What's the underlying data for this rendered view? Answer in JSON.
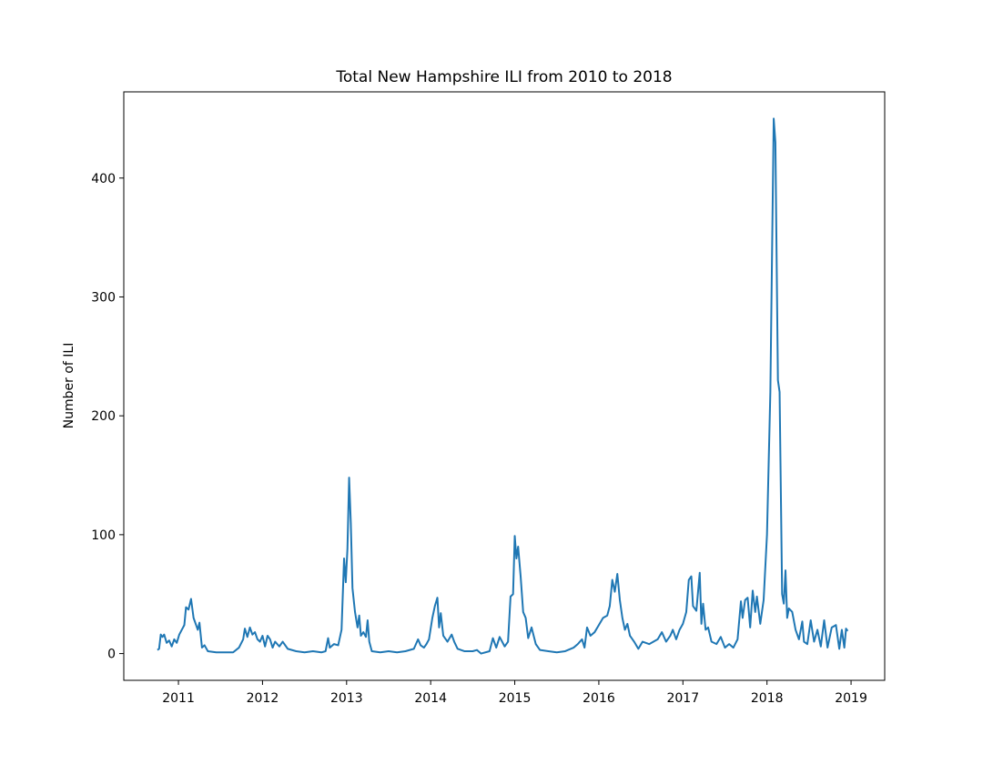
{
  "chart_data": {
    "type": "line",
    "title": "Total New Hampshire ILI from 2010 to 2018",
    "ylabel": "Number of ILI",
    "x": [
      2010.75,
      2010.77,
      2010.79,
      2010.81,
      2010.83,
      2010.86,
      2010.89,
      2010.92,
      2010.95,
      2010.98,
      2011.01,
      2011.04,
      2011.07,
      2011.09,
      2011.12,
      2011.15,
      2011.18,
      2011.21,
      2011.23,
      2011.25,
      2011.28,
      2011.31,
      2011.35,
      2011.45,
      2011.55,
      2011.65,
      2011.72,
      2011.77,
      2011.79,
      2011.82,
      2011.85,
      2011.88,
      2011.91,
      2011.94,
      2011.97,
      2012.0,
      2012.03,
      2012.06,
      2012.09,
      2012.12,
      2012.15,
      2012.2,
      2012.24,
      2012.3,
      2012.4,
      2012.5,
      2012.6,
      2012.7,
      2012.75,
      2012.78,
      2012.8,
      2012.85,
      2012.9,
      2012.94,
      2012.97,
      2012.99,
      2013.01,
      2013.03,
      2013.05,
      2013.07,
      2013.1,
      2013.13,
      2013.15,
      2013.17,
      2013.2,
      2013.23,
      2013.25,
      2013.27,
      2013.3,
      2013.4,
      2013.5,
      2013.6,
      2013.7,
      2013.8,
      2013.85,
      2013.88,
      2013.92,
      2013.95,
      2013.98,
      2014.02,
      2014.05,
      2014.08,
      2014.1,
      2014.12,
      2014.15,
      2014.2,
      2014.25,
      2014.28,
      2014.32,
      2014.4,
      2014.5,
      2014.55,
      2014.6,
      2014.7,
      2014.74,
      2014.78,
      2014.82,
      2014.85,
      2014.88,
      2014.92,
      2014.95,
      2014.98,
      2015.0,
      2015.02,
      2015.04,
      2015.07,
      2015.1,
      2015.13,
      2015.16,
      2015.2,
      2015.25,
      2015.3,
      2015.4,
      2015.5,
      2015.6,
      2015.7,
      2015.75,
      2015.8,
      2015.83,
      2015.86,
      2015.9,
      2015.95,
      2016.0,
      2016.05,
      2016.1,
      2016.13,
      2016.16,
      2016.19,
      2016.22,
      2016.25,
      2016.28,
      2016.31,
      2016.34,
      2016.37,
      2016.42,
      2016.47,
      2016.52,
      2016.6,
      2016.65,
      2016.7,
      2016.75,
      2016.8,
      2016.85,
      2016.88,
      2016.92,
      2016.96,
      2017.0,
      2017.04,
      2017.07,
      2017.1,
      2017.12,
      2017.16,
      2017.2,
      2017.22,
      2017.24,
      2017.27,
      2017.3,
      2017.34,
      2017.4,
      2017.45,
      2017.5,
      2017.55,
      2017.6,
      2017.65,
      2017.69,
      2017.71,
      2017.74,
      2017.77,
      2017.8,
      2017.83,
      2017.86,
      2017.88,
      2017.92,
      2017.96,
      2018.0,
      2018.04,
      2018.08,
      2018.1,
      2018.13,
      2018.15,
      2018.18,
      2018.2,
      2018.22,
      2018.24,
      2018.26,
      2018.3,
      2018.34,
      2018.38,
      2018.42,
      2018.44,
      2018.48,
      2018.52,
      2018.56,
      2018.6,
      2018.64,
      2018.68,
      2018.72,
      2018.77,
      2018.82,
      2018.86,
      2018.89,
      2018.92,
      2018.94,
      2018.96
    ],
    "series": [
      {
        "color": "#1f77b4",
        "values": [
          3,
          4,
          16,
          14,
          16,
          9,
          11,
          6,
          12,
          9,
          16,
          20,
          24,
          39,
          37,
          46,
          30,
          24,
          20,
          26,
          5,
          7,
          2,
          1,
          1,
          1,
          5,
          12,
          21,
          14,
          22,
          16,
          18,
          12,
          10,
          15,
          6,
          15,
          12,
          5,
          10,
          6,
          10,
          4,
          2,
          1,
          2,
          1,
          2,
          13,
          5,
          8,
          7,
          20,
          80,
          60,
          88,
          148,
          110,
          55,
          35,
          22,
          32,
          15,
          18,
          14,
          28,
          10,
          2,
          1,
          2,
          1,
          2,
          4,
          12,
          7,
          5,
          8,
          12,
          30,
          40,
          47,
          22,
          34,
          15,
          10,
          16,
          10,
          4,
          2,
          2,
          3,
          0,
          2,
          13,
          5,
          14,
          10,
          6,
          10,
          48,
          50,
          99,
          80,
          90,
          65,
          35,
          30,
          13,
          22,
          8,
          3,
          2,
          1,
          2,
          5,
          8,
          12,
          5,
          22,
          15,
          18,
          24,
          30,
          32,
          40,
          62,
          52,
          67,
          45,
          30,
          20,
          25,
          15,
          10,
          4,
          10,
          8,
          10,
          12,
          18,
          10,
          15,
          20,
          12,
          20,
          25,
          35,
          62,
          65,
          40,
          36,
          68,
          25,
          42,
          20,
          22,
          10,
          8,
          14,
          5,
          8,
          5,
          12,
          44,
          30,
          45,
          47,
          22,
          53,
          35,
          48,
          25,
          45,
          100,
          220,
          450,
          430,
          230,
          220,
          50,
          42,
          70,
          30,
          38,
          35,
          20,
          12,
          27,
          10,
          8,
          28,
          10,
          20,
          6,
          28,
          5,
          22,
          24,
          4,
          20,
          5,
          21,
          19
        ]
      }
    ],
    "xlim": [
      2010.35,
      2019.4
    ],
    "xticks": [
      2011,
      2012,
      2013,
      2014,
      2015,
      2016,
      2017,
      2018,
      2019
    ],
    "ylim": [
      -22.5,
      472.5
    ],
    "yticks": [
      0,
      100,
      200,
      300,
      400
    ]
  }
}
